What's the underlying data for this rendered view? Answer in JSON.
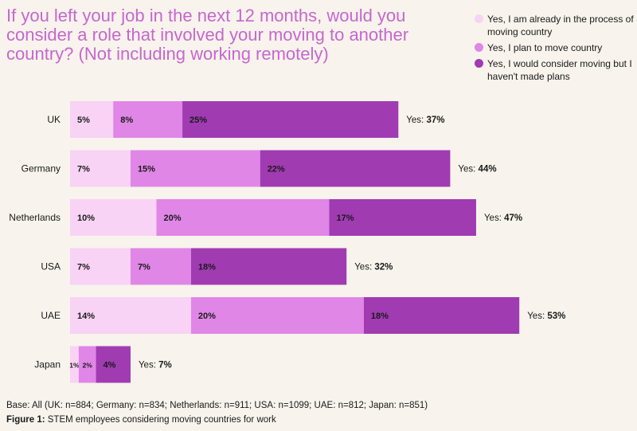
{
  "title": "If you left your job in the next 12 months, would you consider a role that involved your moving to another country? (Not including working remotely)",
  "legend": [
    {
      "label": "Yes, I am already in the process of moving country",
      "color": "#f8d3f5",
      "icon": "circle-icon"
    },
    {
      "label": "Yes, I plan to move country",
      "color": "#e086e6",
      "icon": "circle-icon"
    },
    {
      "label": "Yes, I would consider moving but I haven't made plans",
      "color": "#a03bb2",
      "icon": "circle-icon"
    }
  ],
  "chart_data": {
    "type": "bar",
    "orientation": "horizontal",
    "stacked": true,
    "categories": [
      "UK",
      "Germany",
      "Netherlands",
      "USA",
      "UAE",
      "Japan"
    ],
    "series": [
      {
        "name": "Yes, I am already in the process of moving country",
        "values": [
          5,
          7,
          10,
          7,
          14,
          1
        ],
        "labels": [
          "5%",
          "7%",
          "10%",
          "7%",
          "14%",
          "1%"
        ],
        "color": "#f8d3f5"
      },
      {
        "name": "Yes, I plan to move country",
        "values": [
          8,
          15,
          20,
          7,
          20,
          2
        ],
        "labels": [
          "8%",
          "15%",
          "20%",
          "7%",
          "20%",
          "2%"
        ],
        "color": "#e086e6"
      },
      {
        "name": "Yes, I would consider moving but I haven't made plans",
        "values": [
          25,
          22,
          17,
          18,
          18,
          4
        ],
        "labels": [
          "25%",
          "22%",
          "17%",
          "18%",
          "18%",
          "4%"
        ],
        "color": "#a03bb2"
      }
    ],
    "totals": [
      "Yes: 37%",
      "Yes: 44%",
      "Yes: 47%",
      "Yes: 32%",
      "Yes: 53%",
      "Yes: 7%"
    ],
    "xlim": [
      0,
      53
    ]
  },
  "footer": {
    "base": "Base: All (UK: n=884; Germany: n=834; Netherlands: n=911; USA: n=1099; UAE: n=812; Japan: n=851)",
    "figure_label": "Figure 1:",
    "figure_caption": " STEM employees considering moving countries for work"
  }
}
